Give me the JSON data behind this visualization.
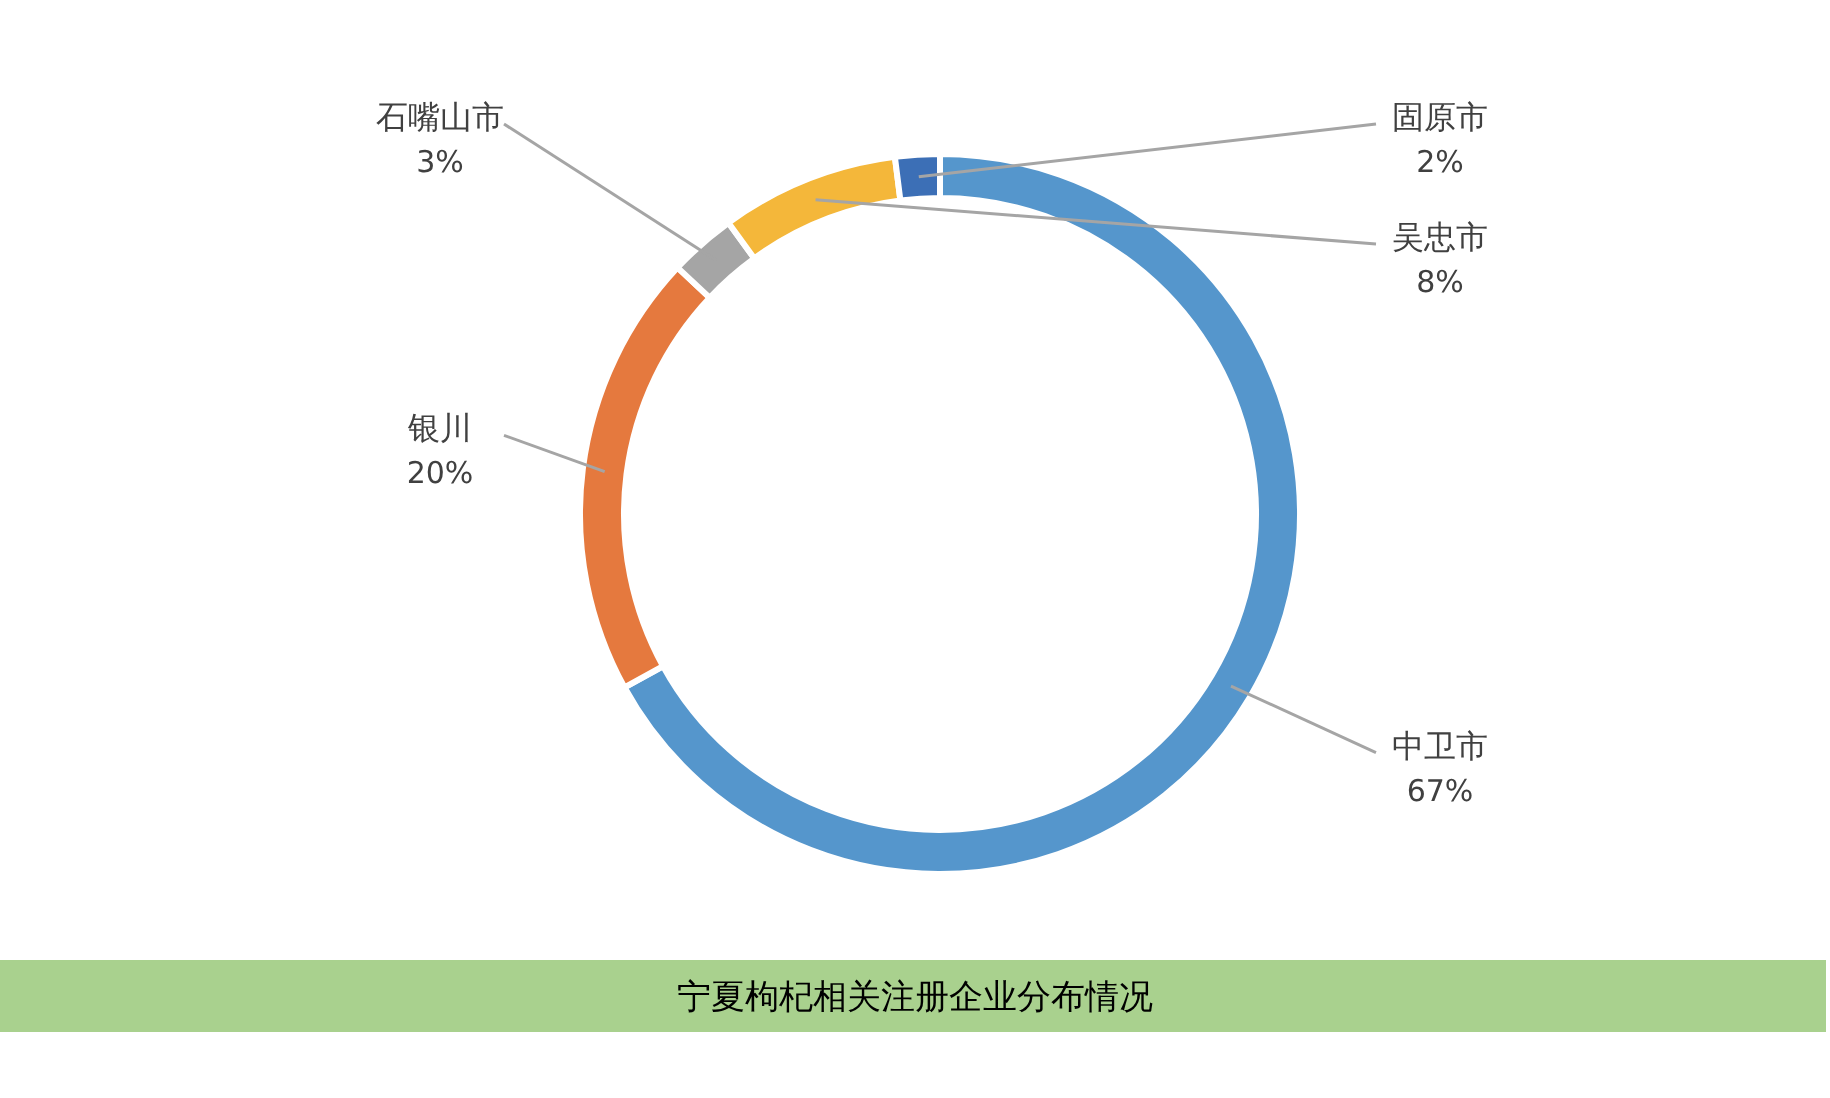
{
  "chart_data": {
    "type": "donut",
    "title": "宁夏枸杞相关注册企业分布情况",
    "categories": [
      "中卫市",
      "银川",
      "石嘴山市",
      "吴忠市",
      "固原市"
    ],
    "values": [
      67,
      20,
      3,
      8,
      2
    ],
    "colors": [
      "#5596cc",
      "#e5793e",
      "#a5a5a5",
      "#f4b73a",
      "#3c6fb6"
    ],
    "value_labels": [
      "67%",
      "20%",
      "3%",
      "8%",
      "2%"
    ]
  }
}
